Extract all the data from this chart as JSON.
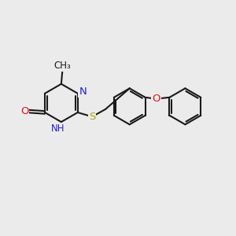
{
  "bg_color": "#ebebeb",
  "bond_color": "#1a1a1a",
  "line_width": 1.5,
  "atom_colors": {
    "N": "#2020dd",
    "O": "#ee1111",
    "S": "#aaaa00",
    "C": "#1a1a1a"
  },
  "font_size": 8.5,
  "fig_width": 3.0,
  "fig_height": 3.0,
  "ring_r": 0.72,
  "dbo": 0.09
}
